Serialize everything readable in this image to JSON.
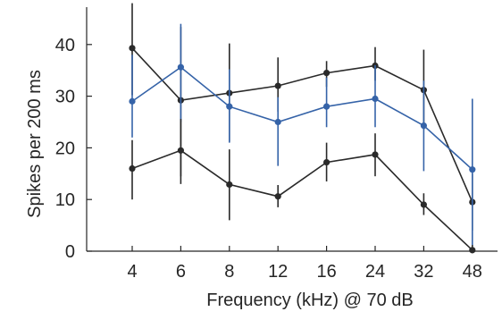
{
  "chart_data": {
    "type": "line",
    "title": "",
    "xlabel": "Frequency (kHz) @ 70 dB",
    "ylabel": "Spikes per 200 ms",
    "categories": [
      "4",
      "6",
      "8",
      "12",
      "16",
      "24",
      "32",
      "48"
    ],
    "yticks": [
      "0",
      "10",
      "20",
      "30",
      "40"
    ],
    "ylim": [
      0,
      48
    ],
    "grid": false,
    "legend": "none",
    "series": [
      {
        "color": "#2a2a2a",
        "values": [
          39.3,
          29.2,
          30.6,
          32.0,
          34.5,
          35.9,
          31.2,
          9.5
        ],
        "err_low": [
          30.2,
          14.5,
          21.2,
          27.0,
          31.8,
          33.0,
          23.5,
          4.0
        ],
        "err_high": [
          48.0,
          43.4,
          40.2,
          37.5,
          36.8,
          39.5,
          39.0,
          15.0
        ]
      },
      {
        "color": "#3563a8",
        "values": [
          29.0,
          35.6,
          28.0,
          25.0,
          28.0,
          29.5,
          24.3,
          15.8
        ],
        "err_low": [
          22.0,
          25.0,
          21.0,
          16.5,
          24.0,
          24.0,
          15.5,
          1.0
        ],
        "err_high": [
          38.0,
          44.0,
          35.2,
          29.8,
          33.6,
          36.0,
          33.0,
          29.5
        ]
      },
      {
        "color": "#2a2a2a",
        "values": [
          16.0,
          19.5,
          12.9,
          10.6,
          17.2,
          18.7,
          9.0,
          0.2
        ],
        "err_low": [
          10.0,
          13.0,
          6.0,
          8.5,
          13.5,
          14.5,
          7.0,
          0.0
        ],
        "err_high": [
          21.5,
          25.6,
          19.7,
          12.8,
          21.0,
          22.8,
          11.2,
          1.2
        ]
      }
    ]
  }
}
